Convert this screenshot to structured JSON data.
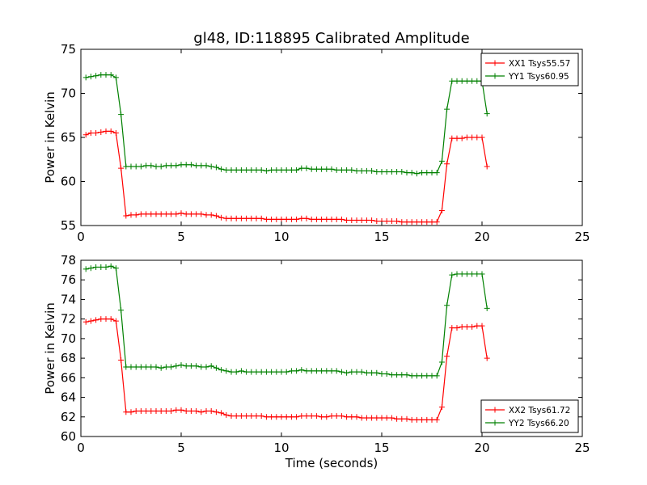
{
  "chart_data": [
    {
      "type": "line",
      "title": "gl48, ID:118895 Calibrated Amplitude",
      "xlabel": "",
      "ylabel": "Power in Kelvin",
      "xlim": [
        0,
        25
      ],
      "ylim": [
        55,
        75
      ],
      "xticks": [
        0,
        5,
        10,
        15,
        20,
        25
      ],
      "yticks": [
        55,
        60,
        65,
        70,
        75
      ],
      "grid": false,
      "legend_position": "top-right",
      "series": [
        {
          "name": "XX1 Tsys55.57",
          "color": "#ff0000",
          "marker": "plus",
          "x": [
            0.25,
            0.5,
            0.75,
            1.0,
            1.25,
            1.5,
            1.75,
            2.0,
            2.25,
            2.5,
            2.75,
            3.0,
            3.25,
            3.5,
            3.75,
            4.0,
            4.25,
            4.5,
            4.75,
            5.0,
            5.25,
            5.5,
            5.75,
            6.0,
            6.25,
            6.5,
            6.75,
            7.0,
            7.25,
            7.5,
            7.75,
            8.0,
            8.25,
            8.5,
            8.75,
            9.0,
            9.25,
            9.5,
            9.75,
            10.0,
            10.25,
            10.5,
            10.75,
            11.0,
            11.25,
            11.5,
            11.75,
            12.0,
            12.25,
            12.5,
            12.75,
            13.0,
            13.25,
            13.5,
            13.75,
            14.0,
            14.25,
            14.5,
            14.75,
            15.0,
            15.25,
            15.5,
            15.75,
            16.0,
            16.25,
            16.5,
            16.75,
            17.0,
            17.25,
            17.5,
            17.75,
            18.0,
            18.25,
            18.5,
            18.75,
            19.0,
            19.25,
            19.5,
            19.75,
            20.0,
            20.25
          ],
          "y": [
            65.3,
            65.5,
            65.5,
            65.6,
            65.7,
            65.7,
            65.5,
            61.5,
            56.1,
            56.2,
            56.2,
            56.3,
            56.3,
            56.3,
            56.3,
            56.3,
            56.3,
            56.3,
            56.3,
            56.4,
            56.3,
            56.3,
            56.3,
            56.3,
            56.2,
            56.2,
            56.1,
            55.9,
            55.8,
            55.8,
            55.8,
            55.8,
            55.8,
            55.8,
            55.8,
            55.8,
            55.7,
            55.7,
            55.7,
            55.7,
            55.7,
            55.7,
            55.7,
            55.8,
            55.8,
            55.7,
            55.7,
            55.7,
            55.7,
            55.7,
            55.7,
            55.7,
            55.6,
            55.6,
            55.6,
            55.6,
            55.6,
            55.6,
            55.5,
            55.5,
            55.5,
            55.5,
            55.5,
            55.4,
            55.4,
            55.4,
            55.4,
            55.4,
            55.4,
            55.4,
            55.4,
            56.7,
            62.0,
            64.9,
            64.9,
            64.9,
            65.0,
            65.0,
            65.0,
            65.0,
            61.7
          ]
        },
        {
          "name": "YY1 Tsys60.95",
          "color": "#008000",
          "marker": "plus",
          "x": [
            0.25,
            0.5,
            0.75,
            1.0,
            1.25,
            1.5,
            1.75,
            2.0,
            2.25,
            2.5,
            2.75,
            3.0,
            3.25,
            3.5,
            3.75,
            4.0,
            4.25,
            4.5,
            4.75,
            5.0,
            5.25,
            5.5,
            5.75,
            6.0,
            6.25,
            6.5,
            6.75,
            7.0,
            7.25,
            7.5,
            7.75,
            8.0,
            8.25,
            8.5,
            8.75,
            9.0,
            9.25,
            9.5,
            9.75,
            10.0,
            10.25,
            10.5,
            10.75,
            11.0,
            11.25,
            11.5,
            11.75,
            12.0,
            12.25,
            12.5,
            12.75,
            13.0,
            13.25,
            13.5,
            13.75,
            14.0,
            14.25,
            14.5,
            14.75,
            15.0,
            15.25,
            15.5,
            15.75,
            16.0,
            16.25,
            16.5,
            16.75,
            17.0,
            17.25,
            17.5,
            17.75,
            18.0,
            18.25,
            18.5,
            18.75,
            19.0,
            19.25,
            19.5,
            19.75,
            20.0,
            20.25
          ],
          "y": [
            71.8,
            71.9,
            72.0,
            72.1,
            72.1,
            72.1,
            71.8,
            67.6,
            61.7,
            61.7,
            61.7,
            61.7,
            61.8,
            61.8,
            61.7,
            61.7,
            61.8,
            61.8,
            61.8,
            61.9,
            61.9,
            61.9,
            61.8,
            61.8,
            61.8,
            61.7,
            61.6,
            61.4,
            61.3,
            61.3,
            61.3,
            61.3,
            61.3,
            61.3,
            61.3,
            61.3,
            61.2,
            61.3,
            61.3,
            61.3,
            61.3,
            61.3,
            61.3,
            61.5,
            61.5,
            61.4,
            61.4,
            61.4,
            61.4,
            61.4,
            61.3,
            61.3,
            61.3,
            61.3,
            61.2,
            61.2,
            61.2,
            61.2,
            61.1,
            61.1,
            61.1,
            61.1,
            61.1,
            61.1,
            61.0,
            61.0,
            60.9,
            61.0,
            61.0,
            61.0,
            61.0,
            62.3,
            68.2,
            71.4,
            71.4,
            71.4,
            71.4,
            71.4,
            71.4,
            71.4,
            67.7
          ]
        }
      ]
    },
    {
      "type": "line",
      "title": "",
      "xlabel": "Time (seconds)",
      "ylabel": "Power in Kelvin",
      "xlim": [
        0,
        25
      ],
      "ylim": [
        60,
        78
      ],
      "xticks": [
        0,
        5,
        10,
        15,
        20,
        25
      ],
      "yticks": [
        60,
        62,
        64,
        66,
        68,
        70,
        72,
        74,
        76,
        78
      ],
      "grid": false,
      "legend_position": "bottom-right",
      "series": [
        {
          "name": "XX2 Tsys61.72",
          "color": "#ff0000",
          "marker": "plus",
          "x": [
            0.25,
            0.5,
            0.75,
            1.0,
            1.25,
            1.5,
            1.75,
            2.0,
            2.25,
            2.5,
            2.75,
            3.0,
            3.25,
            3.5,
            3.75,
            4.0,
            4.25,
            4.5,
            4.75,
            5.0,
            5.25,
            5.5,
            5.75,
            6.0,
            6.25,
            6.5,
            6.75,
            7.0,
            7.25,
            7.5,
            7.75,
            8.0,
            8.25,
            8.5,
            8.75,
            9.0,
            9.25,
            9.5,
            9.75,
            10.0,
            10.25,
            10.5,
            10.75,
            11.0,
            11.25,
            11.5,
            11.75,
            12.0,
            12.25,
            12.5,
            12.75,
            13.0,
            13.25,
            13.5,
            13.75,
            14.0,
            14.25,
            14.5,
            14.75,
            15.0,
            15.25,
            15.5,
            15.75,
            16.0,
            16.25,
            16.5,
            16.75,
            17.0,
            17.25,
            17.5,
            17.75,
            18.0,
            18.25,
            18.5,
            18.75,
            19.0,
            19.25,
            19.5,
            19.75,
            20.0,
            20.25
          ],
          "y": [
            71.7,
            71.8,
            71.9,
            72.0,
            72.0,
            72.0,
            71.8,
            67.8,
            62.5,
            62.5,
            62.6,
            62.6,
            62.6,
            62.6,
            62.6,
            62.6,
            62.6,
            62.6,
            62.7,
            62.7,
            62.6,
            62.6,
            62.6,
            62.5,
            62.6,
            62.6,
            62.5,
            62.4,
            62.2,
            62.1,
            62.1,
            62.1,
            62.1,
            62.1,
            62.1,
            62.1,
            62.0,
            62.0,
            62.0,
            62.0,
            62.0,
            62.0,
            62.0,
            62.1,
            62.1,
            62.1,
            62.1,
            62.0,
            62.0,
            62.1,
            62.1,
            62.1,
            62.0,
            62.0,
            62.0,
            61.9,
            61.9,
            61.9,
            61.9,
            61.9,
            61.9,
            61.9,
            61.8,
            61.8,
            61.8,
            61.7,
            61.7,
            61.7,
            61.7,
            61.7,
            61.7,
            63.0,
            68.2,
            71.1,
            71.1,
            71.2,
            71.2,
            71.2,
            71.3,
            71.3,
            68.0
          ]
        },
        {
          "name": "YY2 Tsys66.20",
          "color": "#008000",
          "marker": "plus",
          "x": [
            0.25,
            0.5,
            0.75,
            1.0,
            1.25,
            1.5,
            1.75,
            2.0,
            2.25,
            2.5,
            2.75,
            3.0,
            3.25,
            3.5,
            3.75,
            4.0,
            4.25,
            4.5,
            4.75,
            5.0,
            5.25,
            5.5,
            5.75,
            6.0,
            6.25,
            6.5,
            6.75,
            7.0,
            7.25,
            7.5,
            7.75,
            8.0,
            8.25,
            8.5,
            8.75,
            9.0,
            9.25,
            9.5,
            9.75,
            10.0,
            10.25,
            10.5,
            10.75,
            11.0,
            11.25,
            11.5,
            11.75,
            12.0,
            12.25,
            12.5,
            12.75,
            13.0,
            13.25,
            13.5,
            13.75,
            14.0,
            14.25,
            14.5,
            14.75,
            15.0,
            15.25,
            15.5,
            15.75,
            16.0,
            16.25,
            16.5,
            16.75,
            17.0,
            17.25,
            17.5,
            17.75,
            18.0,
            18.25,
            18.5,
            18.75,
            19.0,
            19.25,
            19.5,
            19.75,
            20.0,
            20.25
          ],
          "y": [
            77.1,
            77.2,
            77.3,
            77.3,
            77.3,
            77.4,
            77.2,
            72.9,
            67.1,
            67.1,
            67.1,
            67.1,
            67.1,
            67.1,
            67.1,
            67.0,
            67.1,
            67.1,
            67.2,
            67.3,
            67.2,
            67.2,
            67.2,
            67.1,
            67.1,
            67.2,
            67.0,
            66.8,
            66.7,
            66.6,
            66.6,
            66.7,
            66.6,
            66.6,
            66.6,
            66.6,
            66.6,
            66.6,
            66.6,
            66.6,
            66.6,
            66.7,
            66.7,
            66.8,
            66.7,
            66.7,
            66.7,
            66.7,
            66.7,
            66.7,
            66.7,
            66.6,
            66.5,
            66.6,
            66.6,
            66.6,
            66.5,
            66.5,
            66.5,
            66.4,
            66.4,
            66.3,
            66.3,
            66.3,
            66.3,
            66.2,
            66.2,
            66.2,
            66.2,
            66.2,
            66.2,
            67.6,
            73.4,
            76.5,
            76.6,
            76.6,
            76.6,
            76.6,
            76.6,
            76.6,
            73.1
          ]
        }
      ]
    }
  ]
}
